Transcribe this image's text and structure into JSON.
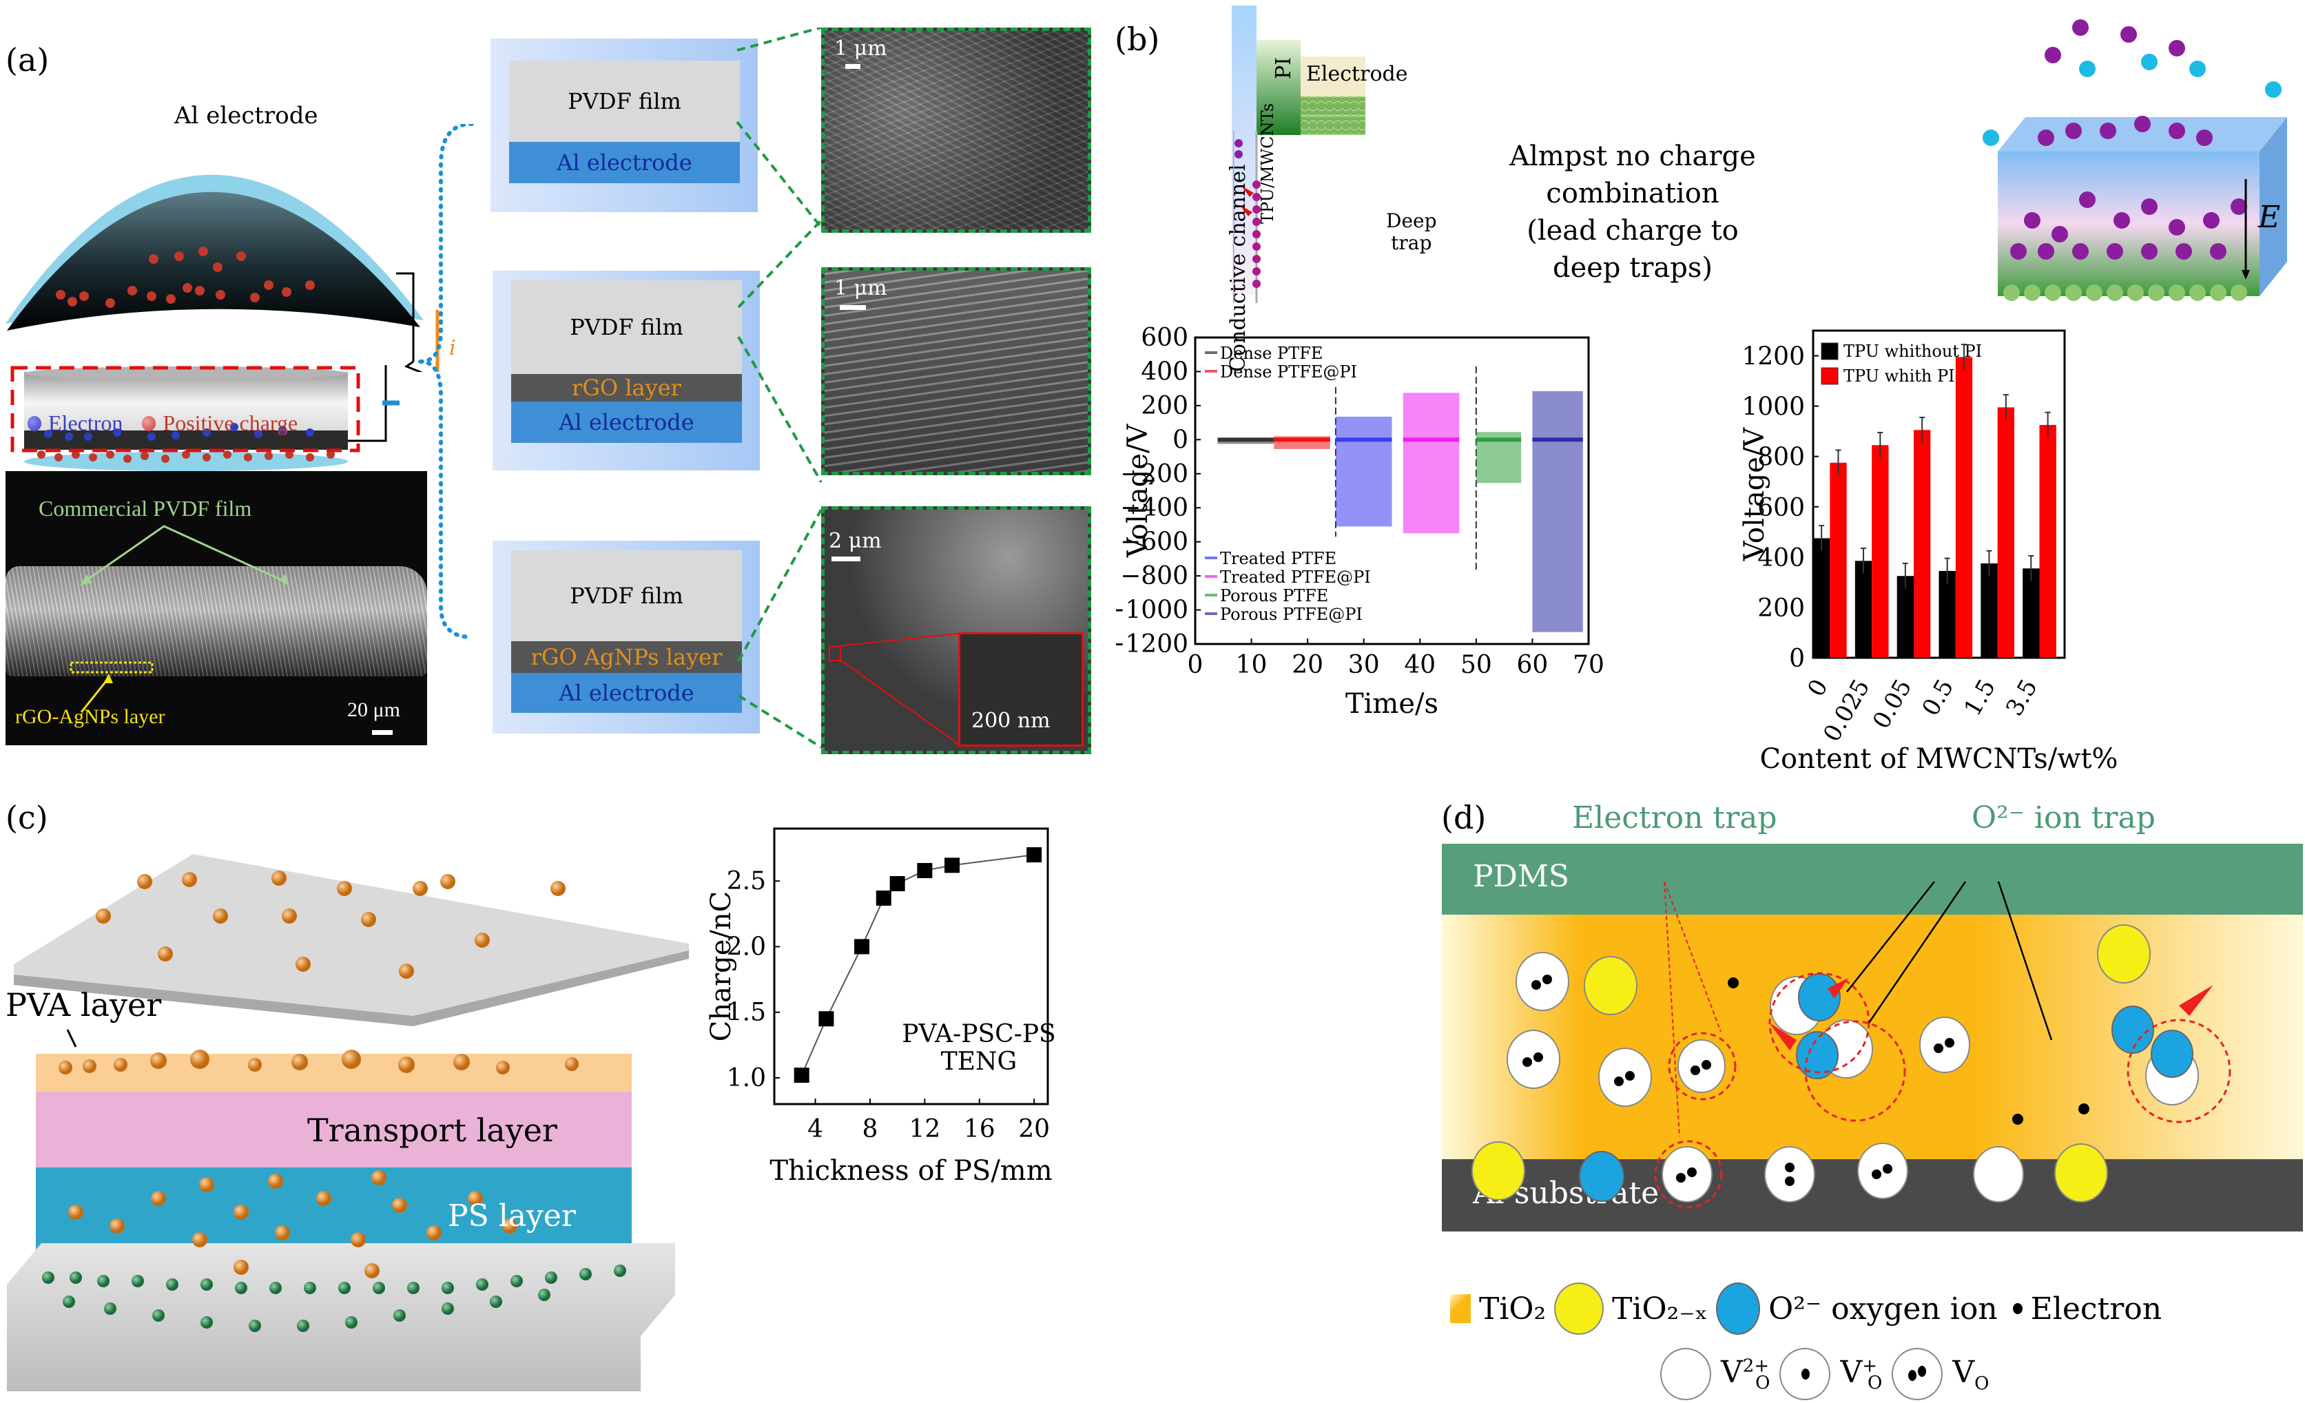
{
  "panels": {
    "a": {
      "label": "(a)",
      "electrode_label": "Al electrode",
      "current_symbol": "i",
      "legend": {
        "electron": "Electron",
        "positive": "Positive charge"
      },
      "colors": {
        "electron": "#3b3fbf",
        "positive": "#c0392b",
        "electrode": "#8ed3ea",
        "stack_blue": "#3f8fd6",
        "rgo": "#555555",
        "pvdf": "#d9d9d9",
        "link_dots": "#1a8fd8",
        "zoom_box": "#1f9a45"
      },
      "sem_cross": {
        "annotation": "Commercial PVDF film",
        "layer_annotation": "rGO-AgNPs layer",
        "scale": "20 μm"
      },
      "stacks": [
        {
          "layers": [
            "PVDF film",
            "Al electrode"
          ],
          "sem_scale": "1 μm"
        },
        {
          "layers": [
            "PVDF film",
            "rGO layer",
            "Al electrode"
          ],
          "sem_scale": "1 μm"
        },
        {
          "layers": [
            "PVDF film",
            "rGO AgNPs layer",
            "Al electrode"
          ],
          "sem_scale": "2 μm",
          "inset_scale": "200 nm"
        }
      ]
    },
    "b": {
      "label": "(b)",
      "schematic": {
        "conductive_channel": "Conductive channel",
        "tpu": "TPU/MWCNTs",
        "pi": "PI",
        "electrode": "Electrode",
        "deep_trap": [
          "Deep",
          "trap"
        ],
        "caption": [
          "Almpst no charge",
          "combination",
          "(lead charge to deep traps)"
        ],
        "field": "E"
      }
    },
    "c": {
      "label": "(c)",
      "layers": {
        "pva": "PVA layer",
        "transport": "Transport layer",
        "ps": "PS layer"
      },
      "annotation": [
        "PVA-PSC-PS",
        "TENG"
      ]
    },
    "d": {
      "label": "(d)",
      "electron_trap": "Electron trap",
      "ion_trap": "O²⁻ ion trap",
      "pdms": "PDMS",
      "substrate": "Al substrate",
      "legend": {
        "tio2": "TiO₂",
        "tio2x": "TiO₂₋ₓ",
        "o2": "O²⁻ oxygen ion",
        "electron": "Electron",
        "vo2": "V",
        "vo2_sup": "2+",
        "vo1": "V",
        "vo1_sup": "+",
        "vo0": "V",
        "sub": "O"
      },
      "colors": {
        "pdms": "#579f7c",
        "tio2": "#fbb814",
        "yellow": "#f7ee16",
        "blue": "#1ca4e0",
        "substrate": "#4a4a4a",
        "labels": "#4a9a74",
        "trap": "#e52222"
      }
    }
  },
  "chart_data": [
    {
      "id": "voltage-time",
      "type": "line",
      "title": "",
      "xlabel": "Time/s",
      "ylabel": "Voltage/V",
      "xlim": [
        0,
        70
      ],
      "ylim": [
        -1200,
        600
      ],
      "xticks": [
        0,
        10,
        20,
        30,
        40,
        50,
        60,
        70
      ],
      "yticks": [
        600,
        400,
        200,
        0,
        -200,
        -400,
        -600,
        -800,
        -1000,
        -1200
      ],
      "dividers_x": [
        25,
        50
      ],
      "legend_top": [
        "Dense PTFE",
        "Dense PTFE@PI"
      ],
      "legend_bottom": [
        "Treated PTFE",
        "Treated PTFE@PI",
        "Porous PTFE",
        "Porous PTFE@PI"
      ],
      "series": [
        {
          "name": "Dense PTFE",
          "color": "#333333",
          "t_range": [
            4,
            14
          ],
          "max": 10,
          "min": -25
        },
        {
          "name": "Dense PTFE@PI",
          "color": "#ee1111",
          "t_range": [
            14,
            24
          ],
          "max": 20,
          "min": -55
        },
        {
          "name": "Treated PTFE",
          "color": "#3b3bf0",
          "t_range": [
            25,
            35
          ],
          "max": 135,
          "min": -510
        },
        {
          "name": "Treated PTFE@PI",
          "color": "#f020f0",
          "t_range": [
            37,
            47
          ],
          "max": 275,
          "min": -550
        },
        {
          "name": "Porous PTFE",
          "color": "#2e9e3e",
          "t_range": [
            50,
            58
          ],
          "max": 45,
          "min": -255
        },
        {
          "name": "Porous PTFE@PI",
          "color": "#2c2ca8",
          "t_range": [
            60,
            69
          ],
          "max": 285,
          "min": -1130
        }
      ]
    },
    {
      "id": "voltage-mwcnt",
      "type": "bar",
      "title": "",
      "xlabel": "Content of MWCNTs/wt%",
      "ylabel": "Voltage/V",
      "ylim": [
        0,
        1300
      ],
      "yticks": [
        0,
        200,
        400,
        600,
        800,
        1000,
        1200
      ],
      "categories": [
        "0",
        "0.025",
        "0.05",
        "0.5",
        "1.5",
        "3.5"
      ],
      "series": [
        {
          "name": "TPU whithout PI",
          "color": "#000000",
          "values": [
            475,
            385,
            325,
            345,
            375,
            355
          ],
          "errors": [
            50,
            50,
            50,
            50,
            50,
            50
          ]
        },
        {
          "name": "TPU whith PI",
          "color": "#ff0000",
          "values": [
            775,
            845,
            905,
            1195,
            995,
            925
          ],
          "errors": [
            50,
            50,
            50,
            50,
            50,
            50
          ]
        }
      ],
      "legend": "top-left"
    },
    {
      "id": "charge-thickness",
      "type": "scatter",
      "title": "",
      "xlabel": "Thickness of PS/mm",
      "ylabel": "Charge/nC",
      "xlim": [
        1,
        21
      ],
      "ylim": [
        0.8,
        2.9
      ],
      "xticks": [
        4,
        8,
        12,
        16,
        20
      ],
      "yticks": [
        1.0,
        1.5,
        2.0,
        2.5
      ],
      "x": [
        3,
        4.8,
        7.4,
        9,
        10,
        12,
        14,
        20
      ],
      "y": [
        1.02,
        1.45,
        2.0,
        2.37,
        2.48,
        2.58,
        2.62,
        2.7
      ],
      "series_color": "#000000"
    }
  ]
}
